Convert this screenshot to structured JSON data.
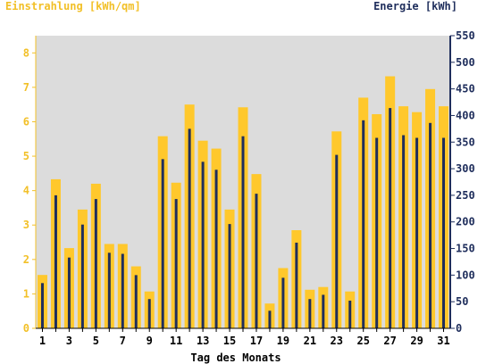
{
  "chart_data": {
    "type": "bar",
    "left_axis_title": "Einstrahlung [kWh/qm]",
    "right_axis_title": "Energie [kWh]",
    "xlabel": "Tag des Monats",
    "left_ylim": [
      0,
      8.5
    ],
    "right_ylim": [
      0,
      550
    ],
    "left_ticks": [
      0,
      1,
      2,
      3,
      4,
      5,
      6,
      7,
      8
    ],
    "right_ticks": [
      0,
      50,
      100,
      150,
      200,
      250,
      300,
      350,
      400,
      450,
      500,
      550
    ],
    "x_ticks": [
      1,
      3,
      5,
      7,
      9,
      11,
      13,
      15,
      17,
      19,
      21,
      23,
      25,
      27,
      29,
      31
    ],
    "categories": [
      1,
      2,
      3,
      4,
      5,
      6,
      7,
      8,
      9,
      10,
      11,
      12,
      13,
      14,
      15,
      16,
      17,
      18,
      19,
      20,
      21,
      22,
      23,
      24,
      25,
      26,
      27,
      28,
      29,
      30,
      31
    ],
    "series": [
      {
        "axis": "left",
        "color": "#ffc82c",
        "values": [
          1.55,
          4.33,
          2.33,
          3.45,
          4.2,
          2.45,
          2.45,
          1.8,
          1.07,
          5.58,
          4.23,
          6.5,
          5.45,
          5.22,
          3.45,
          6.42,
          4.48,
          0.72,
          1.75,
          2.85,
          1.12,
          1.2,
          5.72,
          1.07,
          6.7,
          6.22,
          7.32,
          6.45,
          6.28,
          6.95,
          6.45
        ]
      },
      {
        "axis": "right",
        "color": "#1f2e5c",
        "values": [
          85,
          250,
          133,
          195,
          243,
          142,
          140,
          100,
          55,
          318,
          243,
          375,
          313,
          298,
          196,
          361,
          253,
          33,
          95,
          161,
          55,
          63,
          326,
          52,
          391,
          358,
          414,
          363,
          358,
          386,
          358
        ]
      }
    ],
    "grid": false,
    "colors": {
      "plot_background": "#dcdcdc",
      "left_axis": "#f2c028",
      "right_axis": "#1f2e5c",
      "x_axis": "#000000"
    }
  }
}
